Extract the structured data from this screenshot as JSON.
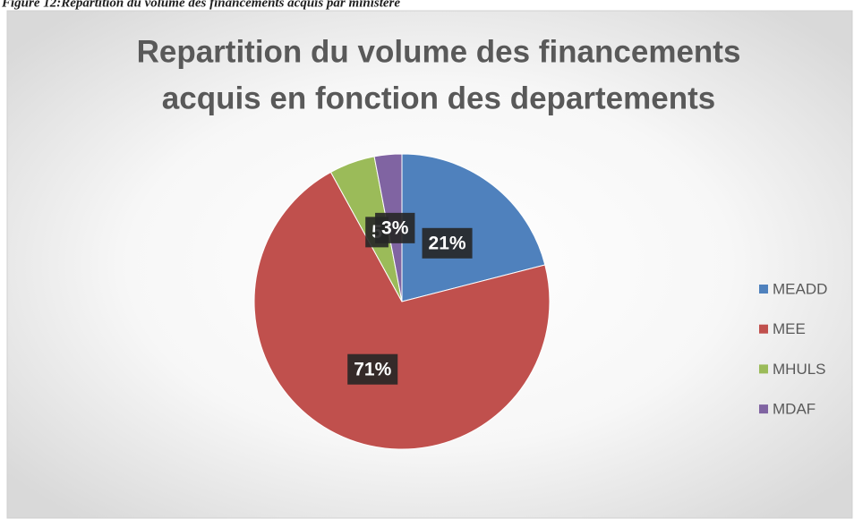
{
  "chart_data": {
    "type": "pie",
    "caption": "Figure 12:Repartition du volume des financements acquis par ministère",
    "title": [
      "Repartition du volume des financements",
      "acquis en fonction des departements"
    ],
    "categories": [
      "MEADD",
      "MEE",
      "MHULS",
      "MDAF"
    ],
    "values": [
      21,
      71,
      5,
      3
    ],
    "value_labels": [
      "21%",
      "71%",
      "5",
      "3%"
    ],
    "colors": [
      "#4f81bd",
      "#c0504d",
      "#9bbb59",
      "#8064a2"
    ],
    "legend": "right"
  }
}
